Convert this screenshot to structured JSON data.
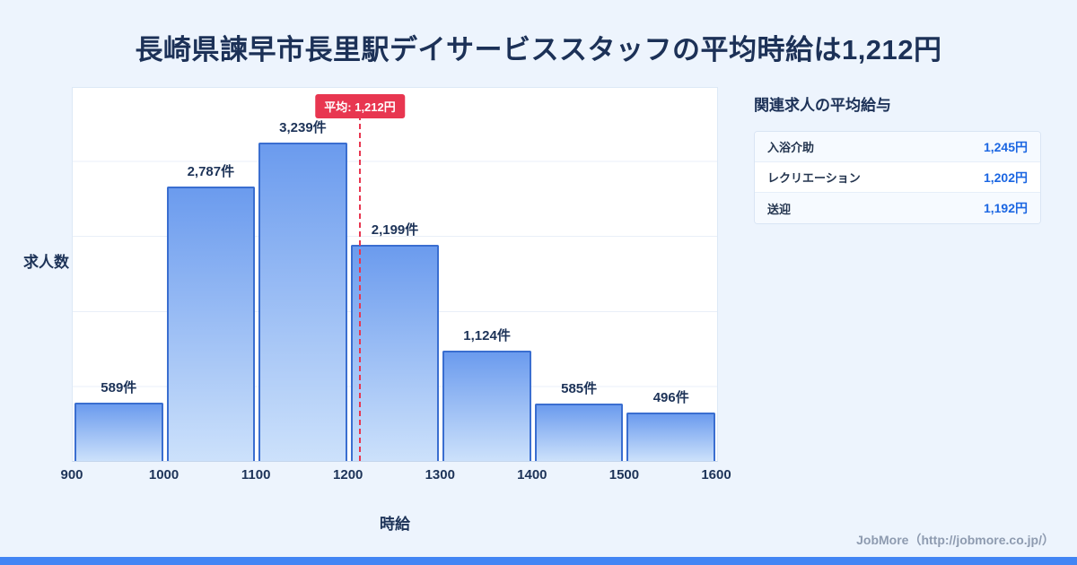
{
  "page": {
    "title": "長崎県諫早市長里駅デイサービススタッフの平均時給は1,212円",
    "footer": "JobMore（http://jobmore.co.jp/）"
  },
  "chart_data": {
    "type": "bar",
    "title": "長崎県諫早市長里駅デイサービススタッフの平均時給は1,212円",
    "xlabel": "時給",
    "ylabel": "求人数",
    "categories": [
      "900-1000",
      "1000-1100",
      "1100-1200",
      "1200-1300",
      "1300-1400",
      "1400-1500",
      "1500-1600"
    ],
    "values": [
      589,
      2787,
      3239,
      2199,
      1124,
      585,
      496
    ],
    "value_labels": [
      "589件",
      "2,787件",
      "3,239件",
      "2,199件",
      "1,124件",
      "585件",
      "496件"
    ],
    "tick_labels": [
      900,
      1000,
      1100,
      1200,
      1300,
      1400,
      1500,
      1600
    ],
    "average": {
      "value": 1212,
      "label": "平均: 1,212円"
    },
    "ylim": [
      0,
      3800
    ],
    "grid": true,
    "legend": false,
    "colors": {
      "bar_top": "#6b9bee",
      "bar_bottom": "#cce1fb",
      "bar_border": "#3a6ed0",
      "average_accent": "#e83650",
      "value_blue": "#1b66e2"
    }
  },
  "related": {
    "title": "関連求人の平均給与",
    "rows": [
      {
        "label": "入浴介助",
        "value": "1,245円"
      },
      {
        "label": "レクリエーション",
        "value": "1,202円"
      },
      {
        "label": "送迎",
        "value": "1,192円"
      }
    ]
  }
}
